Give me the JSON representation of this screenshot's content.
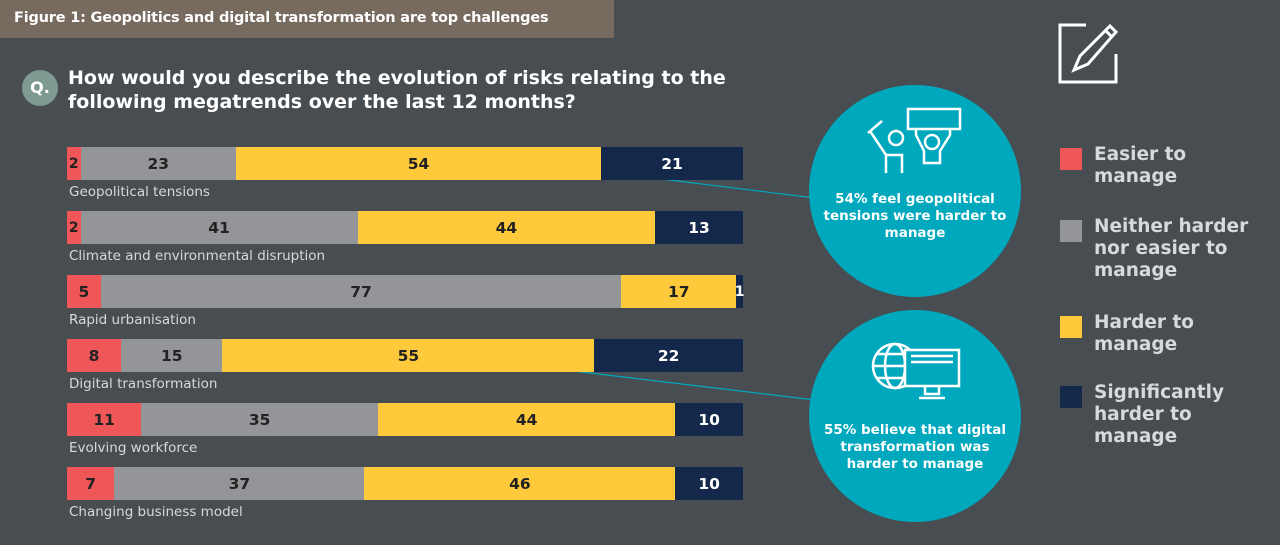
{
  "header": {
    "title": "Figure 1: Geopolitics and digital transformation are top challenges"
  },
  "question": {
    "badge": "Q.",
    "text": "How would you describe the evolution of risks relating to the following megatrends over the last 12 months?"
  },
  "colors": {
    "easier": "#ef5658",
    "neither": "#939598",
    "harder": "#ffc93c",
    "significantly": "#13284b",
    "teal": "#00a8bd"
  },
  "chart_data": {
    "type": "bar",
    "orientation": "horizontal-stacked-100",
    "categories": [
      "Geopolitical tensions",
      "Climate and environmental disruption",
      "Rapid urbanisation",
      "Digital transformation",
      "Evolving workforce",
      "Changing business model"
    ],
    "series": [
      {
        "name": "Easier to manage",
        "values": [
          2,
          2,
          5,
          8,
          11,
          7
        ]
      },
      {
        "name": "Neither harder nor easier to manage",
        "values": [
          23,
          41,
          77,
          15,
          35,
          37
        ]
      },
      {
        "name": "Harder to manage",
        "values": [
          54,
          44,
          17,
          55,
          44,
          46
        ]
      },
      {
        "name": "Significantly harder to manage",
        "values": [
          21,
          13,
          1,
          22,
          10,
          10
        ]
      }
    ],
    "legend_position": "right",
    "annotations": [
      {
        "category": "Geopolitical tensions",
        "text": "54% feel geopolitical tensions were harder to manage"
      },
      {
        "category": "Digital transformation",
        "text": "55% believe that digital transformation was harder to manage"
      }
    ]
  },
  "legend": [
    "Easier to manage",
    "Neither harder nor easier to manage",
    "Harder to manage",
    "Significantly harder to manage"
  ]
}
